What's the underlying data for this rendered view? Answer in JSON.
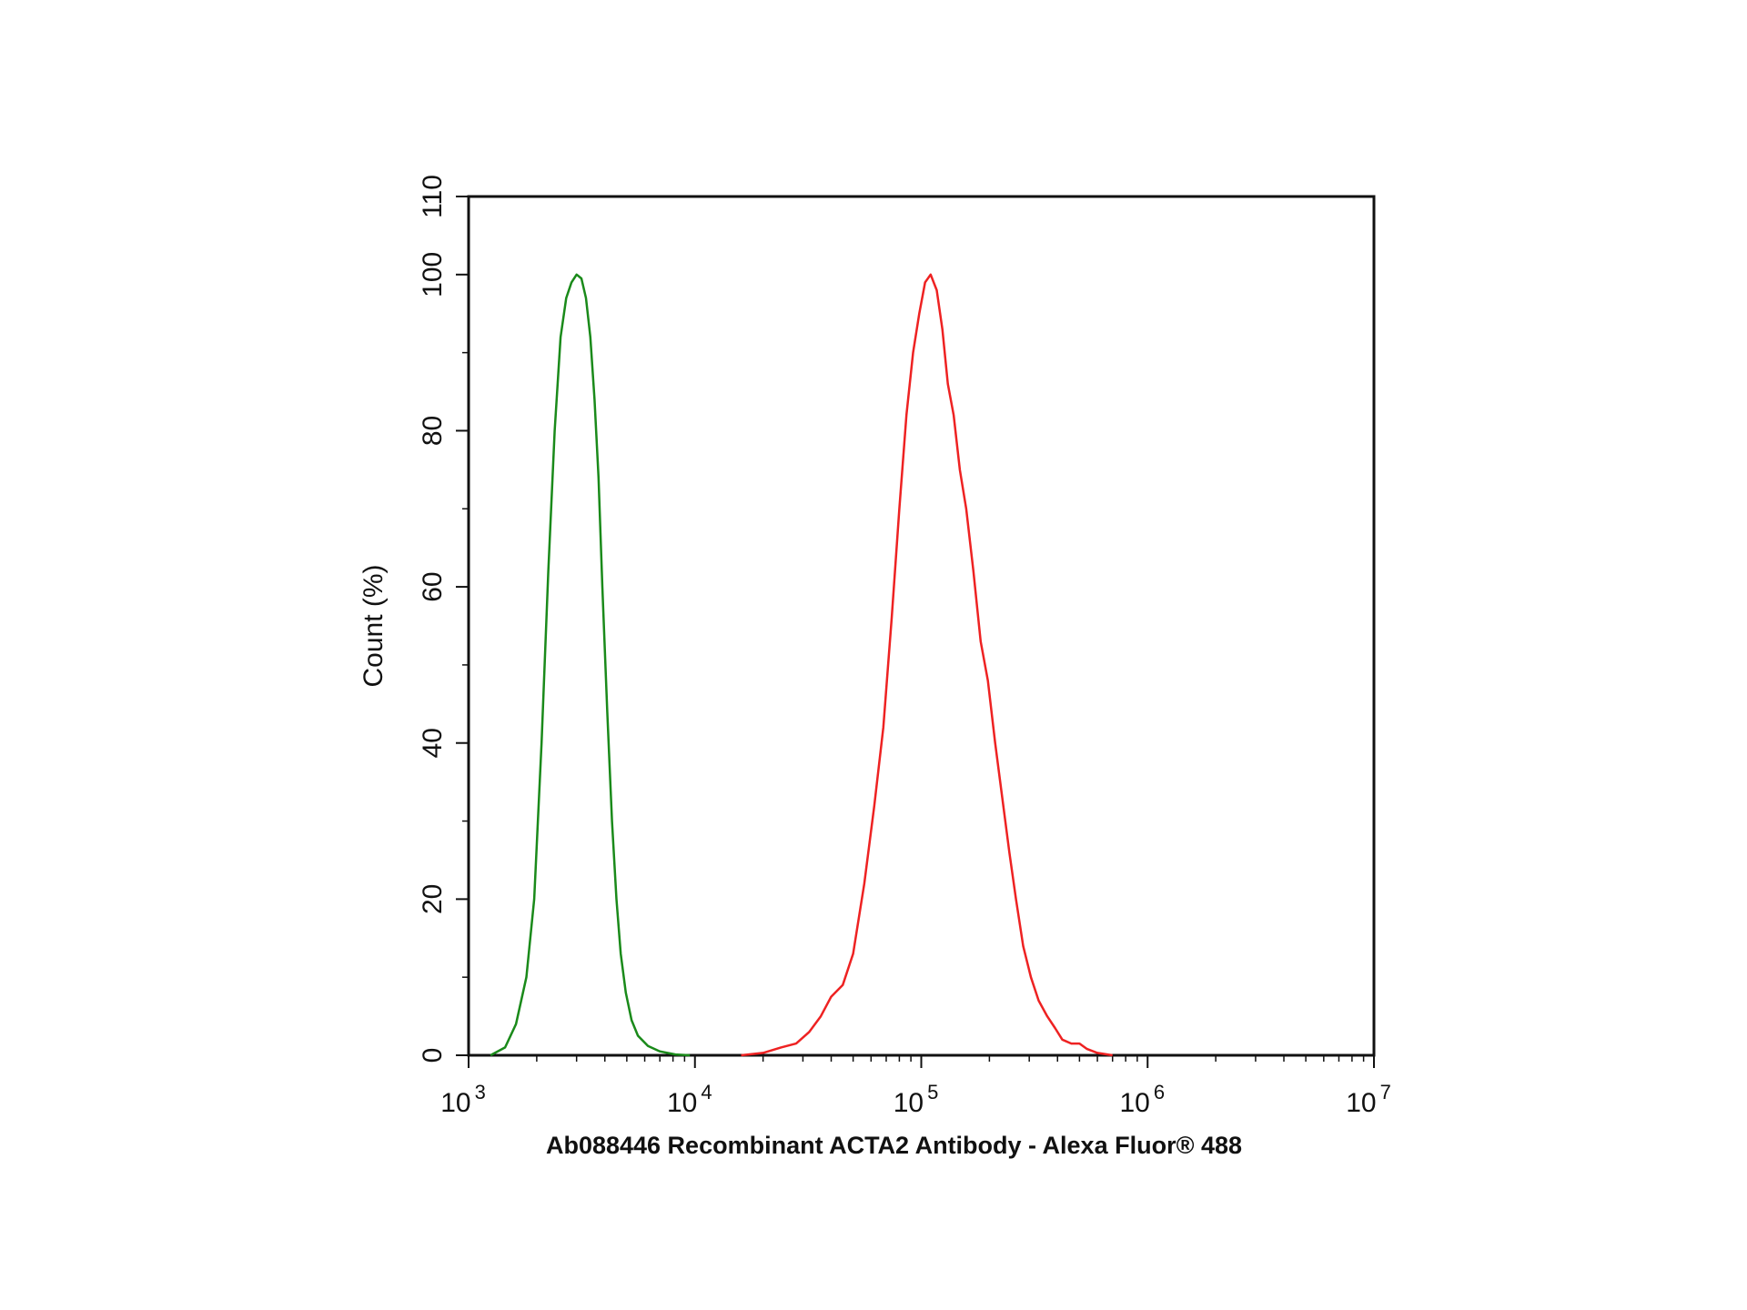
{
  "chart_data": {
    "type": "line",
    "xlabel": "Ab088446  Recombinant ACTA2 Antibody  -  Alexa Fluor® 488",
    "ylabel": "Count  (%)",
    "x_scale": "log",
    "xlim": [
      1000,
      10000000
    ],
    "ylim": [
      0,
      110
    ],
    "y_ticks": [
      0,
      20,
      40,
      60,
      80,
      100,
      110
    ],
    "x_ticks": [
      {
        "value": 1000,
        "base": "10",
        "exp": "3"
      },
      {
        "value": 10000,
        "base": "10",
        "exp": "4"
      },
      {
        "value": 100000,
        "base": "10",
        "exp": "5"
      },
      {
        "value": 1000000,
        "base": "10",
        "exp": "6"
      },
      {
        "value": 10000000,
        "base": "10",
        "exp": "7"
      }
    ],
    "grid": false,
    "series": [
      {
        "color": "#1a8a1a",
        "points": [
          [
            1250,
            0
          ],
          [
            1450,
            1
          ],
          [
            1620,
            4
          ],
          [
            1800,
            10
          ],
          [
            1950,
            20
          ],
          [
            2100,
            40
          ],
          [
            2250,
            62
          ],
          [
            2400,
            80
          ],
          [
            2550,
            92
          ],
          [
            2700,
            97
          ],
          [
            2850,
            99
          ],
          [
            3000,
            100
          ],
          [
            3150,
            99.5
          ],
          [
            3300,
            97
          ],
          [
            3450,
            92
          ],
          [
            3600,
            84
          ],
          [
            3750,
            74
          ],
          [
            3900,
            60
          ],
          [
            4100,
            44
          ],
          [
            4300,
            30
          ],
          [
            4500,
            20
          ],
          [
            4700,
            13
          ],
          [
            4950,
            8
          ],
          [
            5250,
            4.5
          ],
          [
            5600,
            2.5
          ],
          [
            6200,
            1.2
          ],
          [
            7000,
            0.5
          ],
          [
            8200,
            0.1
          ],
          [
            9500,
            0
          ]
        ]
      },
      {
        "color": "#ee2222",
        "points": [
          [
            16000,
            0
          ],
          [
            20000,
            0.3
          ],
          [
            24000,
            1
          ],
          [
            28000,
            1.5
          ],
          [
            32000,
            3
          ],
          [
            36000,
            5
          ],
          [
            40000,
            7.5
          ],
          [
            45000,
            9
          ],
          [
            50000,
            13
          ],
          [
            56000,
            22
          ],
          [
            62000,
            32
          ],
          [
            68000,
            42
          ],
          [
            74000,
            56
          ],
          [
            80000,
            70
          ],
          [
            86000,
            82
          ],
          [
            92000,
            90
          ],
          [
            98000,
            95
          ],
          [
            104000,
            99
          ],
          [
            110000,
            100
          ],
          [
            117000,
            98
          ],
          [
            124000,
            93
          ],
          [
            131000,
            86
          ],
          [
            139000,
            82
          ],
          [
            148000,
            75
          ],
          [
            158000,
            70
          ],
          [
            170000,
            62
          ],
          [
            183000,
            53
          ],
          [
            197000,
            48
          ],
          [
            212000,
            40
          ],
          [
            228000,
            33
          ],
          [
            245000,
            26
          ],
          [
            262000,
            20
          ],
          [
            282000,
            14
          ],
          [
            305000,
            10
          ],
          [
            330000,
            7
          ],
          [
            360000,
            5
          ],
          [
            390000,
            3.5
          ],
          [
            420000,
            2
          ],
          [
            460000,
            1.5
          ],
          [
            500000,
            1.5
          ],
          [
            540000,
            0.8
          ],
          [
            600000,
            0.3
          ],
          [
            700000,
            0
          ]
        ]
      }
    ]
  }
}
